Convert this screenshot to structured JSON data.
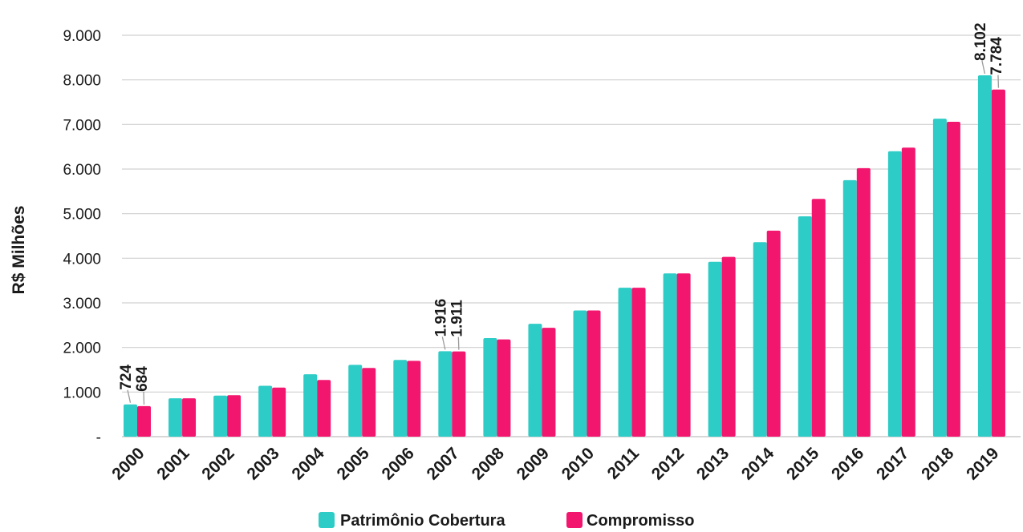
{
  "chart_data": {
    "type": "bar",
    "ylabel": "R$ Milhões",
    "xlabel": "",
    "title": "",
    "categories": [
      "2000",
      "2001",
      "2002",
      "2003",
      "2004",
      "2005",
      "2006",
      "2007",
      "2008",
      "2009",
      "2010",
      "2011",
      "2012",
      "2013",
      "2014",
      "2015",
      "2016",
      "2017",
      "2018",
      "2019"
    ],
    "series": [
      {
        "name": "Patrimônio Cobertura",
        "color": "#2ECCC6",
        "values": [
          724,
          860,
          920,
          1140,
          1400,
          1610,
          1720,
          1916,
          2210,
          2530,
          2830,
          3340,
          3660,
          3920,
          4360,
          4940,
          5750,
          6400,
          7130,
          8102
        ]
      },
      {
        "name": "Compromisso",
        "color": "#F2166E",
        "values": [
          684,
          860,
          930,
          1100,
          1270,
          1540,
          1700,
          1911,
          2180,
          2440,
          2830,
          3340,
          3660,
          4030,
          4620,
          5330,
          6020,
          6480,
          7060,
          7784
        ]
      }
    ],
    "data_labels": [
      {
        "category": "2000",
        "series": 0,
        "text": "724"
      },
      {
        "category": "2000",
        "series": 1,
        "text": "684"
      },
      {
        "category": "2007",
        "series": 0,
        "text": "1.916"
      },
      {
        "category": "2007",
        "series": 1,
        "text": "1.911"
      },
      {
        "category": "2019",
        "series": 0,
        "text": "8.102"
      },
      {
        "category": "2019",
        "series": 1,
        "text": "7.784"
      }
    ],
    "ylim": [
      0,
      9000
    ],
    "yticks": [
      0,
      1000,
      2000,
      3000,
      4000,
      5000,
      6000,
      7000,
      8000,
      9000
    ],
    "ytick_labels": [
      "-",
      "1.000",
      "2.000",
      "3.000",
      "4.000",
      "5.000",
      "6.000",
      "7.000",
      "8.000",
      "9.000"
    ],
    "grid": true,
    "gridline_color": "#d0d0d0",
    "legend_position": "bottom-center"
  }
}
